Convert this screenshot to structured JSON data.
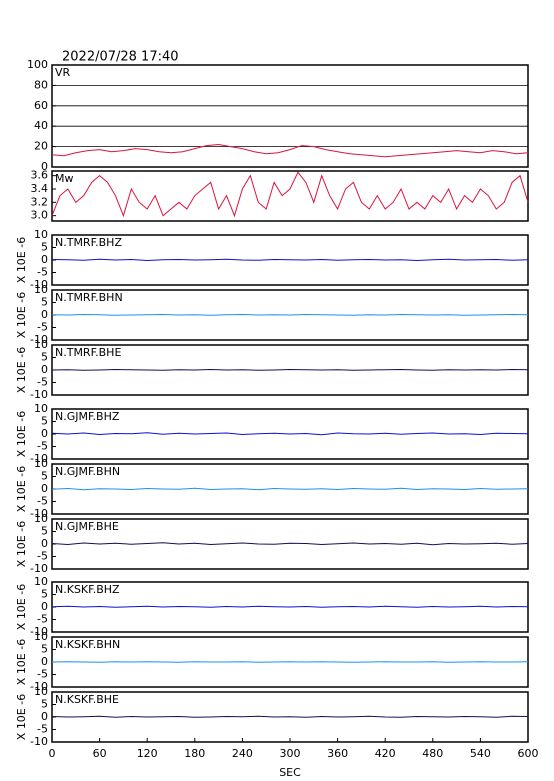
{
  "chart_data": [
    {
      "type": "line",
      "title": "2022/07/28 17:40",
      "xlim": [
        0,
        600
      ],
      "ylim": [
        0,
        100
      ],
      "yticks": [
        0,
        20,
        40,
        60,
        80,
        100
      ],
      "grid": true,
      "x": [
        0,
        15,
        30,
        45,
        60,
        75,
        90,
        105,
        120,
        135,
        150,
        165,
        180,
        195,
        210,
        225,
        240,
        255,
        270,
        285,
        300,
        315,
        330,
        345,
        360,
        375,
        390,
        405,
        420,
        435,
        450,
        465,
        480,
        495,
        510,
        525,
        540,
        555,
        570,
        585,
        600
      ],
      "series": [
        {
          "name": "VR",
          "color": "#dc143c",
          "values": [
            12,
            11,
            14,
            16,
            17,
            15,
            16,
            18,
            17,
            15,
            14,
            15,
            18,
            21,
            22,
            20,
            18,
            15,
            13,
            14,
            17,
            21,
            20,
            17,
            15,
            13,
            12,
            11,
            10,
            11,
            12,
            13,
            14,
            15,
            16,
            15,
            14,
            16,
            15,
            13,
            14
          ]
        }
      ]
    },
    {
      "type": "line",
      "xlim": [
        0,
        600
      ],
      "ylim": [
        2.92,
        3.67
      ],
      "yticks": [
        {
          "value": 3,
          "label": "3.0"
        },
        3.2,
        3.4,
        3.6
      ],
      "grid": false,
      "x": [
        0,
        10,
        20,
        30,
        40,
        50,
        60,
        70,
        80,
        90,
        100,
        110,
        120,
        130,
        140,
        150,
        160,
        170,
        180,
        190,
        200,
        210,
        220,
        230,
        240,
        250,
        260,
        270,
        280,
        290,
        300,
        310,
        320,
        330,
        340,
        350,
        360,
        370,
        380,
        390,
        400,
        410,
        420,
        430,
        440,
        450,
        460,
        470,
        480,
        490,
        500,
        510,
        520,
        530,
        540,
        550,
        560,
        570,
        580,
        590,
        600
      ],
      "series": [
        {
          "name": "Mw",
          "color": "#dc143c",
          "values": [
            3.0,
            3.3,
            3.4,
            3.2,
            3.3,
            3.5,
            3.6,
            3.5,
            3.3,
            3.0,
            3.4,
            3.2,
            3.1,
            3.3,
            3.0,
            3.1,
            3.2,
            3.1,
            3.3,
            3.4,
            3.5,
            3.1,
            3.3,
            3.0,
            3.4,
            3.6,
            3.2,
            3.1,
            3.5,
            3.3,
            3.4,
            3.65,
            3.5,
            3.2,
            3.6,
            3.3,
            3.1,
            3.4,
            3.5,
            3.2,
            3.1,
            3.3,
            3.1,
            3.2,
            3.4,
            3.1,
            3.2,
            3.1,
            3.3,
            3.2,
            3.4,
            3.1,
            3.3,
            3.2,
            3.4,
            3.3,
            3.1,
            3.2,
            3.5,
            3.6,
            3.2
          ]
        }
      ]
    },
    {
      "type": "line",
      "ylabel": "X 10E -6",
      "xlim": [
        0,
        600
      ],
      "ylim": [
        -10,
        10
      ],
      "yticks": [
        -10,
        -5,
        0,
        5,
        10
      ],
      "x": [
        0,
        20,
        40,
        60,
        80,
        100,
        120,
        140,
        160,
        180,
        200,
        220,
        240,
        260,
        280,
        300,
        320,
        340,
        360,
        380,
        400,
        420,
        440,
        460,
        480,
        500,
        520,
        540,
        560,
        580,
        600
      ],
      "series": [
        {
          "name": "N.TMRF.BHZ",
          "color": "#1010d0",
          "values": [
            0.2,
            0.1,
            -0.1,
            0.3,
            0.0,
            0.2,
            -0.2,
            0.1,
            0.2,
            0.0,
            0.1,
            0.3,
            0.0,
            -0.1,
            0.2,
            0.1,
            0.0,
            0.2,
            -0.1,
            0.1,
            0.2,
            0.0,
            0.1,
            -0.2,
            0.1,
            0.3,
            0.0,
            0.1,
            0.2,
            -0.1,
            0.1
          ]
        }
      ]
    },
    {
      "type": "line",
      "ylabel": "X 10E -6",
      "xlim": [
        0,
        600
      ],
      "ylim": [
        -10,
        10
      ],
      "yticks": [
        -10,
        -5,
        0,
        5,
        10
      ],
      "x": [
        0,
        20,
        40,
        60,
        80,
        100,
        120,
        140,
        160,
        180,
        200,
        220,
        240,
        260,
        280,
        300,
        320,
        340,
        360,
        380,
        400,
        420,
        440,
        460,
        480,
        500,
        520,
        540,
        560,
        580,
        600
      ],
      "series": [
        {
          "name": "N.TMRF.BHN",
          "color": "#2090e8",
          "values": [
            0.1,
            0.0,
            0.2,
            0.1,
            -0.1,
            0.0,
            0.1,
            0.2,
            0.0,
            0.1,
            -0.1,
            0.1,
            0.2,
            0.0,
            0.1,
            0.0,
            0.2,
            0.1,
            0.0,
            -0.1,
            0.1,
            0.0,
            0.2,
            0.1,
            0.0,
            0.1,
            -0.1,
            0.0,
            0.1,
            0.2,
            0.1
          ]
        }
      ]
    },
    {
      "type": "line",
      "ylabel": "X 10E -6",
      "xlim": [
        0,
        600
      ],
      "ylim": [
        -10,
        10
      ],
      "yticks": [
        -10,
        -5,
        0,
        5,
        10
      ],
      "x": [
        0,
        20,
        40,
        60,
        80,
        100,
        120,
        140,
        160,
        180,
        200,
        220,
        240,
        260,
        280,
        300,
        320,
        340,
        360,
        380,
        400,
        420,
        440,
        460,
        480,
        500,
        520,
        540,
        560,
        580,
        600
      ],
      "series": [
        {
          "name": "N.TMRF.BHE",
          "color": "#10105a",
          "values": [
            0.0,
            0.1,
            -0.1,
            0.0,
            0.2,
            0.1,
            0.0,
            -0.1,
            0.1,
            0.0,
            0.2,
            0.0,
            0.1,
            -0.1,
            0.0,
            0.2,
            0.1,
            0.0,
            0.1,
            -0.1,
            0.0,
            0.1,
            0.2,
            0.0,
            -0.1,
            0.1,
            0.0,
            0.1,
            0.0,
            0.2,
            0.1
          ]
        }
      ]
    },
    {
      "type": "line",
      "ylabel": "X 10E -6",
      "xlim": [
        0,
        600
      ],
      "ylim": [
        -10,
        10
      ],
      "yticks": [
        -10,
        -5,
        0,
        5,
        10
      ],
      "x": [
        0,
        20,
        40,
        60,
        80,
        100,
        120,
        140,
        160,
        180,
        200,
        220,
        240,
        260,
        280,
        300,
        320,
        340,
        360,
        380,
        400,
        420,
        440,
        460,
        480,
        500,
        520,
        540,
        560,
        580,
        600
      ],
      "series": [
        {
          "name": "N.GJMF.BHZ",
          "color": "#1010d0",
          "values": [
            0.3,
            0.0,
            0.4,
            -0.2,
            0.2,
            0.1,
            0.5,
            -0.1,
            0.3,
            0.0,
            0.2,
            0.4,
            -0.2,
            0.1,
            0.3,
            0.0,
            0.2,
            -0.3,
            0.4,
            0.1,
            0.0,
            0.3,
            -0.1,
            0.2,
            0.4,
            0.0,
            0.1,
            -0.2,
            0.3,
            0.2,
            0.1
          ]
        }
      ]
    },
    {
      "type": "line",
      "ylabel": "X 10E -6",
      "xlim": [
        0,
        600
      ],
      "ylim": [
        -10,
        10
      ],
      "yticks": [
        -10,
        -5,
        0,
        5,
        10
      ],
      "x": [
        0,
        20,
        40,
        60,
        80,
        100,
        120,
        140,
        160,
        180,
        200,
        220,
        240,
        260,
        280,
        300,
        320,
        340,
        360,
        380,
        400,
        420,
        440,
        460,
        480,
        500,
        520,
        540,
        560,
        580,
        600
      ],
      "series": [
        {
          "name": "N.GJMF.BHN",
          "color": "#2090e8",
          "values": [
            -0.1,
            0.2,
            -0.3,
            0.1,
            0.0,
            -0.2,
            0.2,
            0.0,
            -0.1,
            0.3,
            -0.2,
            0.0,
            0.1,
            -0.3,
            0.2,
            0.0,
            -0.1,
            0.1,
            -0.2,
            0.2,
            0.0,
            -0.1,
            0.3,
            -0.2,
            0.1,
            0.0,
            -0.2,
            0.2,
            -0.1,
            0.0,
            0.1
          ]
        }
      ]
    },
    {
      "type": "line",
      "ylabel": "X 10E -6",
      "xlim": [
        0,
        600
      ],
      "ylim": [
        -10,
        10
      ],
      "yticks": [
        -10,
        -5,
        0,
        5,
        10
      ],
      "x": [
        0,
        20,
        40,
        60,
        80,
        100,
        120,
        140,
        160,
        180,
        200,
        220,
        240,
        260,
        280,
        300,
        320,
        340,
        360,
        380,
        400,
        420,
        440,
        460,
        480,
        500,
        520,
        540,
        560,
        580,
        600
      ],
      "series": [
        {
          "name": "N.GJMF.BHE",
          "color": "#10105a",
          "values": [
            0.2,
            -0.2,
            0.4,
            0.0,
            0.3,
            -0.1,
            0.2,
            0.5,
            0.0,
            0.3,
            -0.2,
            0.1,
            0.4,
            0.0,
            -0.1,
            0.3,
            0.2,
            -0.2,
            0.1,
            0.4,
            0.0,
            0.2,
            -0.1,
            0.3,
            -0.3,
            0.2,
            0.0,
            0.1,
            0.3,
            -0.1,
            0.2
          ]
        }
      ]
    },
    {
      "type": "line",
      "ylabel": "X 10E -6",
      "xlim": [
        0,
        600
      ],
      "ylim": [
        -10,
        10
      ],
      "yticks": [
        -10,
        -5,
        0,
        5,
        10
      ],
      "x": [
        0,
        20,
        40,
        60,
        80,
        100,
        120,
        140,
        160,
        180,
        200,
        220,
        240,
        260,
        280,
        300,
        320,
        340,
        360,
        380,
        400,
        420,
        440,
        460,
        480,
        500,
        520,
        540,
        560,
        580,
        600
      ],
      "series": [
        {
          "name": "N.KSKF.BHZ",
          "color": "#1010d0",
          "values": [
            0.1,
            0.3,
            0.0,
            0.2,
            -0.1,
            0.1,
            0.3,
            0.0,
            0.2,
            0.1,
            -0.1,
            0.2,
            0.0,
            0.3,
            0.1,
            0.0,
            0.2,
            -0.1,
            0.1,
            0.2,
            0.0,
            0.3,
            0.1,
            -0.1,
            0.2,
            0.0,
            0.1,
            0.3,
            0.0,
            0.2,
            0.1
          ]
        }
      ]
    },
    {
      "type": "line",
      "ylabel": "X 10E -6",
      "xlim": [
        0,
        600
      ],
      "ylim": [
        -10,
        10
      ],
      "yticks": [
        -10,
        -5,
        0,
        5,
        10
      ],
      "x": [
        0,
        20,
        40,
        60,
        80,
        100,
        120,
        140,
        160,
        180,
        200,
        220,
        240,
        260,
        280,
        300,
        320,
        340,
        360,
        380,
        400,
        420,
        440,
        460,
        480,
        500,
        520,
        540,
        560,
        580,
        600
      ],
      "series": [
        {
          "name": "N.KSKF.BHN",
          "color": "#2090e8",
          "values": [
            0.0,
            0.1,
            0.0,
            -0.1,
            0.1,
            0.0,
            0.1,
            0.0,
            -0.1,
            0.1,
            0.0,
            0.0,
            0.1,
            -0.1,
            0.0,
            0.1,
            0.0,
            0.1,
            0.0,
            -0.1,
            0.0,
            0.1,
            0.0,
            0.0,
            0.1,
            -0.1,
            0.0,
            0.1,
            0.0,
            0.0,
            0.1
          ]
        }
      ]
    },
    {
      "type": "line",
      "ylabel": "X 10E -6",
      "xlabel": "SEC",
      "xlim": [
        0,
        600
      ],
      "ylim": [
        -10,
        10
      ],
      "yticks": [
        -10,
        -5,
        0,
        5,
        10
      ],
      "xticks": [
        0,
        60,
        120,
        180,
        240,
        300,
        360,
        420,
        480,
        540,
        600
      ],
      "x": [
        0,
        20,
        40,
        60,
        80,
        100,
        120,
        140,
        160,
        180,
        200,
        220,
        240,
        260,
        280,
        300,
        320,
        340,
        360,
        380,
        400,
        420,
        440,
        460,
        480,
        500,
        520,
        540,
        560,
        580,
        600
      ],
      "series": [
        {
          "name": "N.KSKF.BHE",
          "color": "#10105a",
          "values": [
            0.2,
            0.0,
            0.1,
            0.3,
            -0.1,
            0.2,
            0.0,
            0.1,
            0.2,
            -0.1,
            0.0,
            0.2,
            0.1,
            0.3,
            0.0,
            0.1,
            -0.1,
            0.2,
            0.0,
            0.1,
            0.3,
            0.0,
            -0.1,
            0.2,
            0.1,
            0.0,
            0.2,
            0.1,
            -0.1,
            0.3,
            0.2
          ]
        }
      ]
    }
  ]
}
